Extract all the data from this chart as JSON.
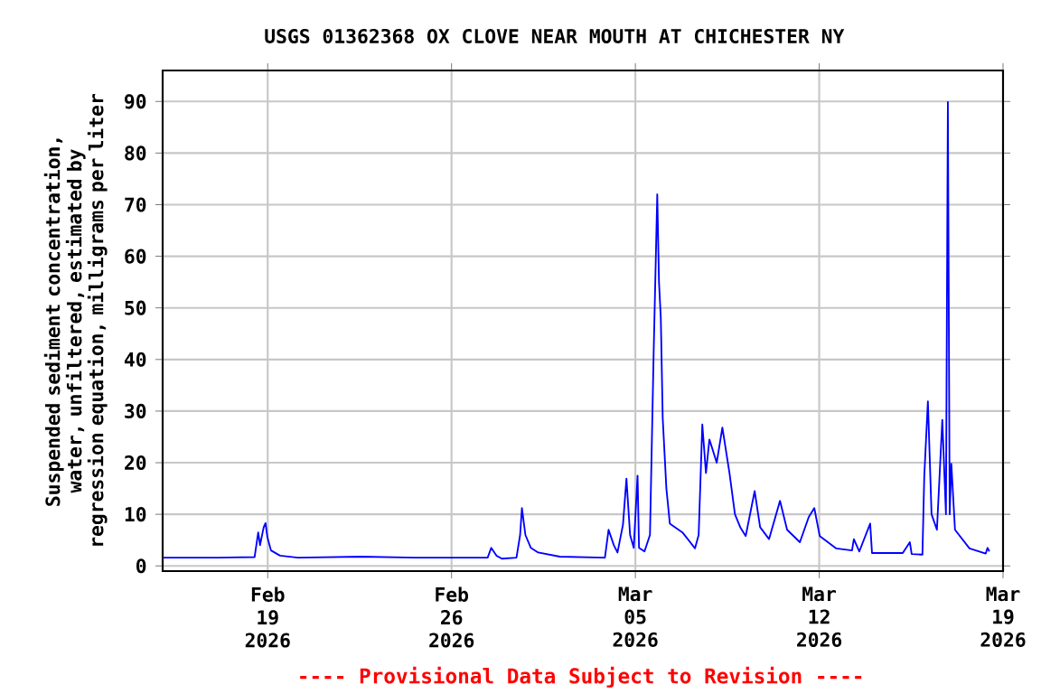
{
  "chart_data": {
    "type": "line",
    "title": "USGS 01362368 OX CLOVE NEAR MOUTH AT CHICHESTER NY",
    "ylabel": "Suspended sediment concentration, water, unfiltered, estimated by regression equation, milligrams per liter",
    "annotations": [
      "---- Provisional Data Subject to Revision ----"
    ],
    "xlim": [
      "2026-02-15T00:00",
      "2026-03-19T00:00"
    ],
    "xticks": [
      {
        "value": "2026-02-19",
        "label": "Feb 19 2026"
      },
      {
        "value": "2026-02-26",
        "label": "Feb 26 2026"
      },
      {
        "value": "2026-03-05",
        "label": "Mar 05 2026"
      },
      {
        "value": "2026-03-12",
        "label": "Mar 12 2026"
      },
      {
        "value": "2026-03-19",
        "label": "Mar 19 2026"
      }
    ],
    "ylim": [
      -1,
      96
    ],
    "yticks": [
      0,
      10,
      20,
      30,
      40,
      50,
      60,
      70,
      80,
      90
    ],
    "grid": true,
    "series": [
      {
        "color": "#0000ff",
        "x": [
          "2026-02-15T00:00",
          "2026-02-17T01:30",
          "2026-02-18T12:00",
          "2026-02-18T15:20",
          "2026-02-18T17:00",
          "2026-02-18T20:20",
          "2026-02-18T22:00",
          "2026-02-18T23:45",
          "2026-02-19T03:00",
          "2026-02-19T11:15",
          "2026-02-20T03:40",
          "2026-02-22T13:30",
          "2026-02-24T15:00",
          "2026-02-27T09:00",
          "2026-02-27T12:15",
          "2026-02-27T17:00",
          "2026-02-27T22:00",
          "2026-02-28T11:20",
          "2026-02-28T14:40",
          "2026-02-28T16:20",
          "2026-02-28T19:30",
          "2026-03-01T00:30",
          "2026-03-01T07:10",
          "2026-03-02T03:00",
          "2026-03-03T20:10",
          "2026-03-03T23:30",
          "2026-03-04T04:20",
          "2026-03-04T07:40",
          "2026-03-04T12:40",
          "2026-03-04T15:50",
          "2026-03-04T19:10",
          "2026-03-04T22:30",
          "2026-03-05T02:00",
          "2026-03-05T03:20",
          "2026-03-05T08:20",
          "2026-03-05T13:20",
          "2026-03-05T16:40",
          "2026-03-05T20:00",
          "2026-03-05T21:35",
          "2026-03-05T23:15",
          "2026-03-06T01:00",
          "2026-03-06T04:20",
          "2026-03-06T07:30",
          "2026-03-06T19:00",
          "2026-03-07T06:30",
          "2026-03-07T09:50",
          "2026-03-07T13:10",
          "2026-03-07T16:30",
          "2026-03-07T19:40",
          "2026-03-08T02:20",
          "2026-03-08T07:30",
          "2026-03-08T14:00",
          "2026-03-08T19:00",
          "2026-03-08T23:50",
          "2026-03-09T04:50",
          "2026-03-09T13:00",
          "2026-03-09T18:00",
          "2026-03-10T02:10",
          "2026-03-10T12:10",
          "2026-03-10T18:40",
          "2026-03-11T06:20",
          "2026-03-11T14:30",
          "2026-03-11T19:30",
          "2026-03-12T00:30",
          "2026-03-12T15:20",
          "2026-03-13T06:00",
          "2026-03-13T07:40",
          "2026-03-13T12:40",
          "2026-03-13T22:35",
          "2026-03-14T00:15",
          "2026-03-15T04:20",
          "2026-03-15T10:50",
          "2026-03-15T12:30",
          "2026-03-15T22:20",
          "2026-03-16T00:00",
          "2026-03-16T03:20",
          "2026-03-16T06:40",
          "2026-03-16T11:35",
          "2026-03-16T16:30",
          "2026-03-16T19:50",
          "2026-03-16T21:35",
          "2026-03-16T23:15",
          "2026-03-17T00:45",
          "2026-03-17T04:05",
          "2026-03-17T17:20",
          "2026-03-18T08:10",
          "2026-03-18T09:50",
          "2026-03-18T11:30"
        ],
        "values": [
          1.6,
          1.6,
          1.7,
          6.5,
          4,
          7.5,
          8.3,
          5.5,
          3,
          2,
          1.6,
          1.8,
          1.6,
          1.6,
          3.5,
          2,
          1.4,
          1.6,
          6,
          11.2,
          6,
          3.5,
          2.6,
          1.8,
          1.6,
          7,
          4,
          2.6,
          8,
          16.9,
          6,
          3.5,
          17.5,
          3.5,
          2.8,
          6,
          40.9,
          72,
          55,
          48,
          28.6,
          15,
          8.2,
          6.5,
          3.4,
          6,
          27.4,
          18,
          24.5,
          20,
          26.8,
          18,
          10,
          7.5,
          5.8,
          14.5,
          7.5,
          5.2,
          12.6,
          7,
          4.6,
          9.5,
          11.2,
          5.8,
          3.4,
          3,
          5.2,
          2.8,
          8.2,
          2.5,
          2.5,
          4.6,
          2.3,
          2.2,
          17.3,
          31.9,
          10,
          7,
          28.3,
          10,
          89.9,
          10,
          19.8,
          7,
          3.4,
          2.4,
          3.5,
          2.8
        ]
      }
    ]
  }
}
